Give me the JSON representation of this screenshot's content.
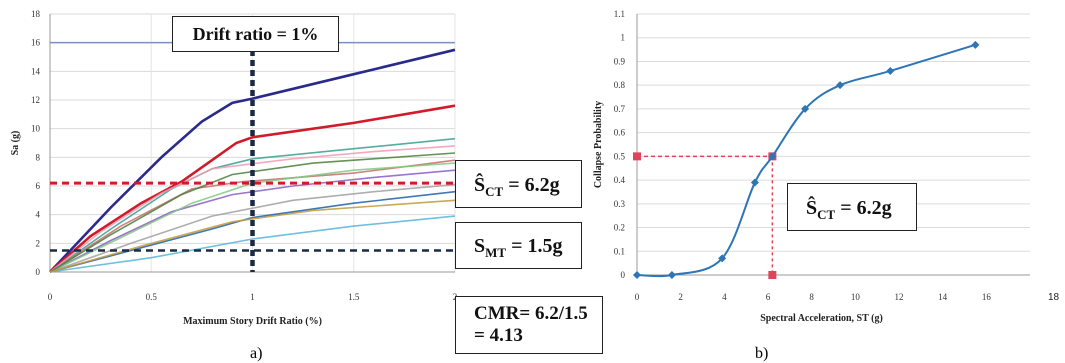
{
  "page_number": "18",
  "chart_data": [
    {
      "type": "line",
      "xlabel": "Maximum Story Drift Ratio (%)",
      "ylabel": "Sa (g)",
      "xlim": [
        0,
        2
      ],
      "ylim": [
        0,
        18
      ],
      "xticks": [
        0,
        0.5,
        1,
        1.5,
        2
      ],
      "xtick_labels": [
        "0",
        "0.5",
        "1",
        "1.5",
        "2"
      ],
      "yticks": [
        0,
        2,
        4,
        6,
        8,
        10,
        12,
        14,
        16,
        18
      ],
      "grid": true,
      "reference_lines": {
        "drift_ratio": 1,
        "S_CT": 6.2,
        "S_MT": 1.5,
        "top_line": 16
      },
      "annotations": {
        "drift": "Drift ratio = 1%",
        "sct_hat": "Ŝ",
        "sct_sub": "CT",
        "sct_val": " = 6.2g",
        "smt_main": "S",
        "smt_sub": "MT",
        "smt_val": " = 1.5g",
        "cmr_line1": "CMR= 6.2/1.5",
        "cmr_line2": "= 4.13"
      },
      "series": [
        {
          "color": "#2a2a8c",
          "x": [
            0,
            0.1,
            0.3,
            0.55,
            0.75,
            0.9,
            1.0,
            1.5,
            2.0
          ],
          "y": [
            0,
            1.5,
            4.5,
            8,
            10.5,
            11.8,
            12.1,
            13.8,
            15.5
          ]
        },
        {
          "color": "#d11a2a",
          "x": [
            0,
            0.2,
            0.45,
            0.65,
            0.8,
            0.92,
            1.0,
            1.5,
            2.0
          ],
          "y": [
            0,
            2.5,
            4.8,
            6.3,
            7.8,
            9,
            9.4,
            10.4,
            11.6
          ]
        },
        {
          "color": "#3a9d8f",
          "x": [
            0,
            0.3,
            0.6,
            0.8,
            1.0,
            1.5,
            2.0
          ],
          "y": [
            0,
            3,
            5.8,
            7.2,
            7.9,
            8.6,
            9.3
          ]
        },
        {
          "color": "#c86a6a",
          "x": [
            0,
            0.35,
            0.7,
            0.95,
            1.5,
            2.0
          ],
          "y": [
            0,
            3.2,
            5.8,
            6.3,
            6.9,
            7.8
          ]
        },
        {
          "color": "#1f5fa8",
          "x": [
            0,
            0.4,
            0.8,
            1.0,
            1.5,
            2.0
          ],
          "y": [
            0,
            1.5,
            3,
            3.8,
            4.8,
            5.6
          ]
        },
        {
          "color": "#56b4d8",
          "x": [
            0,
            0.5,
            1.0,
            1.5,
            2.0
          ],
          "y": [
            0,
            1,
            2.3,
            3.2,
            3.9
          ]
        },
        {
          "color": "#8a5cc7",
          "x": [
            0,
            0.3,
            0.6,
            0.9,
            1.2,
            1.6,
            2.0
          ],
          "y": [
            0,
            2.2,
            4.2,
            5.4,
            6,
            6.6,
            7.1
          ]
        },
        {
          "color": "#f29bb0",
          "x": [
            0,
            0.25,
            0.55,
            0.8,
            1.2,
            1.6,
            2.0
          ],
          "y": [
            0,
            2.8,
            5.5,
            7.2,
            7.9,
            8.4,
            8.8
          ]
        },
        {
          "color": "#7fc97f",
          "x": [
            0,
            0.35,
            0.7,
            1.0,
            1.5,
            2.0
          ],
          "y": [
            0,
            2.4,
            4.8,
            6.2,
            7.1,
            7.6
          ]
        },
        {
          "color": "#a0a0a0",
          "x": [
            0,
            0.4,
            0.8,
            1.2,
            1.6,
            2.0
          ],
          "y": [
            0,
            2,
            3.9,
            5,
            5.6,
            6.1
          ]
        },
        {
          "color": "#4a7f3a",
          "x": [
            0,
            0.3,
            0.65,
            0.9,
            1.3,
            2.0
          ],
          "y": [
            0,
            2.6,
            5.4,
            6.8,
            7.6,
            8.3
          ]
        },
        {
          "color": "#c19a3a",
          "x": [
            0,
            0.45,
            0.9,
            1.3,
            2.0
          ],
          "y": [
            0,
            1.8,
            3.5,
            4.3,
            5
          ]
        }
      ]
    },
    {
      "type": "line",
      "xlabel": "Spectral Acceleration, ST (g)",
      "ylabel": "Collapse Probability",
      "xlim": [
        0,
        18
      ],
      "ylim": [
        0,
        1.1
      ],
      "xticks": [
        0,
        2,
        4,
        6,
        8,
        10,
        12,
        14,
        16
      ],
      "yticks": [
        0,
        0.1,
        0.2,
        0.3,
        0.4,
        0.5,
        0.6,
        0.7,
        0.8,
        0.9,
        1,
        1.1
      ],
      "ytick_labels": [
        "0",
        "0.1",
        "0.2",
        "0.3",
        "0.4",
        "0.5",
        "0.6",
        "0.7",
        "0.8",
        "0.9",
        "1",
        "1.1"
      ],
      "grid": true,
      "reference_point": {
        "x": 6.2,
        "y": 0.5
      },
      "annotations": {
        "sct_hat": "Ŝ",
        "sct_sub": "CT",
        "sct_val": " = 6.2g"
      },
      "series": [
        {
          "color": "#2e75b6",
          "x": [
            0,
            1.6,
            3.9,
            5.4,
            6.2,
            7.7,
            9.3,
            11.6,
            15.5
          ],
          "y": [
            0,
            0,
            0.07,
            0.39,
            0.5,
            0.7,
            0.8,
            0.86,
            0.97
          ]
        }
      ]
    }
  ],
  "captions": {
    "a": "a)",
    "b": "b)"
  }
}
